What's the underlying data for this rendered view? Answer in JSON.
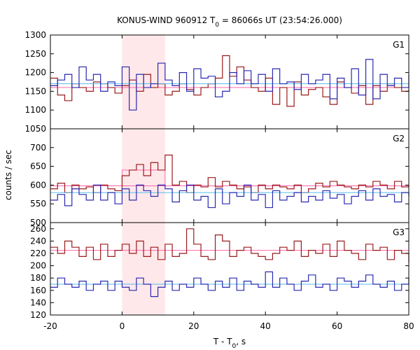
{
  "chart_data": {
    "type": "line",
    "title_parts": {
      "prefix": "KONUS-WIND 960912 T",
      "sub": "0",
      "suffix": " = 86066s UT (23:54:26.000)"
    },
    "xlabel_parts": {
      "prefix": "T - T",
      "sub": "0",
      "suffix": ", s"
    },
    "ylabel": "counts / sec",
    "xlim": [
      -20,
      80
    ],
    "xticks": [
      -20,
      0,
      20,
      40,
      60,
      80
    ],
    "highlight": {
      "x0": 0,
      "x1": 12,
      "color": "#ffe8ea"
    },
    "x": [
      -20,
      -18,
      -16,
      -14,
      -12,
      -10,
      -8,
      -6,
      -4,
      -2,
      0,
      2,
      4,
      6,
      8,
      10,
      12,
      14,
      16,
      18,
      20,
      22,
      24,
      26,
      28,
      30,
      32,
      34,
      36,
      38,
      40,
      42,
      44,
      46,
      48,
      50,
      52,
      54,
      56,
      58,
      60,
      62,
      64,
      66,
      68,
      70,
      72,
      74,
      76,
      78,
      80
    ],
    "panels": [
      {
        "label": "G1",
        "ylim": [
          1050,
          1300
        ],
        "yticks": [
          1050,
          1100,
          1150,
          1200,
          1250,
          1300
        ],
        "series": [
          {
            "color": "#9b1b1b",
            "mean": 1160,
            "mean_color": "#ff66aa",
            "values": [
              1185,
              1140,
              1125,
              1170,
              1160,
              1150,
              1175,
              1170,
              1160,
              1145,
              1165,
              1180,
              1150,
              1195,
              1160,
              1170,
              1140,
              1150,
              1170,
              1155,
              1140,
              1160,
              1170,
              1185,
              1245,
              1190,
              1215,
              1180,
              1160,
              1150,
              1185,
              1115,
              1160,
              1110,
              1175,
              1140,
              1155,
              1160,
              1135,
              1115,
              1175,
              1160,
              1145,
              1165,
              1115,
              1165,
              1150,
              1170,
              1160,
              1150,
              1155
            ]
          },
          {
            "color": "#2a2ab0",
            "mean": 1170,
            "mean_color": "#55bbee",
            "values": [
              1165,
              1180,
              1195,
              1160,
              1215,
              1180,
              1195,
              1150,
              1175,
              1165,
              1215,
              1100,
              1195,
              1160,
              1170,
              1225,
              1180,
              1165,
              1200,
              1150,
              1210,
              1185,
              1190,
              1135,
              1150,
              1200,
              1170,
              1205,
              1170,
              1195,
              1150,
              1210,
              1170,
              1175,
              1155,
              1195,
              1170,
              1180,
              1195,
              1130,
              1185,
              1160,
              1210,
              1140,
              1235,
              1130,
              1195,
              1165,
              1185,
              1160,
              1195
            ]
          }
        ]
      },
      {
        "label": "G2",
        "ylim": [
          500,
          750
        ],
        "yticks": [
          500,
          550,
          600,
          650,
          700
        ],
        "series": [
          {
            "color": "#9b1b1b",
            "mean": 598,
            "mean_color": "#ff66aa",
            "mean_pulse": {
              "x0": 0,
              "x1": 12,
              "value": 640
            },
            "values": [
              590,
              605,
              580,
              600,
              590,
              595,
              580,
              600,
              590,
              585,
              625,
              640,
              655,
              625,
              660,
              640,
              680,
              600,
              610,
              580,
              600,
              595,
              620,
              595,
              610,
              600,
              590,
              595,
              580,
              600,
              590,
              600,
              595,
              590,
              600,
              580,
              590,
              605,
              595,
              610,
              600,
              595,
              590,
              600,
              595,
              610,
              600,
              590,
              610,
              595,
              600
            ]
          },
          {
            "color": "#2a2ab0",
            "mean": 580,
            "mean_color": "#55bbee",
            "values": [
              560,
              575,
              545,
              590,
              575,
              560,
              600,
              560,
              580,
              550,
              590,
              560,
              600,
              585,
              570,
              600,
              590,
              555,
              585,
              600,
              560,
              570,
              540,
              590,
              550,
              580,
              570,
              600,
              560,
              575,
              540,
              585,
              560,
              570,
              580,
              555,
              570,
              560,
              585,
              565,
              575,
              550,
              570,
              585,
              560,
              590,
              570,
              575,
              555,
              580,
              570
            ]
          }
        ]
      },
      {
        "label": "G3",
        "ylim": [
          120,
          270
        ],
        "yticks": [
          120,
          140,
          160,
          180,
          200,
          220,
          240,
          260
        ],
        "series": [
          {
            "color": "#9b1b1b",
            "mean": 225,
            "mean_color": "#ff66aa",
            "values": [
              230,
              220,
              240,
              230,
              215,
              230,
              210,
              235,
              215,
              225,
              235,
              220,
              240,
              215,
              230,
              210,
              235,
              215,
              220,
              260,
              235,
              215,
              210,
              250,
              240,
              215,
              225,
              230,
              220,
              215,
              210,
              220,
              230,
              225,
              240,
              215,
              225,
              220,
              235,
              215,
              240,
              225,
              220,
              210,
              235,
              225,
              230,
              210,
              225,
              220,
              205
            ]
          },
          {
            "color": "#2a2ab0",
            "mean": 170,
            "mean_color": "#55bbee",
            "values": [
              165,
              180,
              170,
              165,
              175,
              160,
              170,
              175,
              160,
              175,
              165,
              160,
              180,
              170,
              150,
              165,
              175,
              160,
              170,
              165,
              180,
              170,
              160,
              175,
              165,
              180,
              160,
              175,
              170,
              165,
              190,
              165,
              180,
              170,
              160,
              175,
              185,
              165,
              170,
              160,
              180,
              175,
              165,
              175,
              185,
              170,
              165,
              175,
              160,
              170,
              180
            ]
          }
        ]
      }
    ]
  }
}
